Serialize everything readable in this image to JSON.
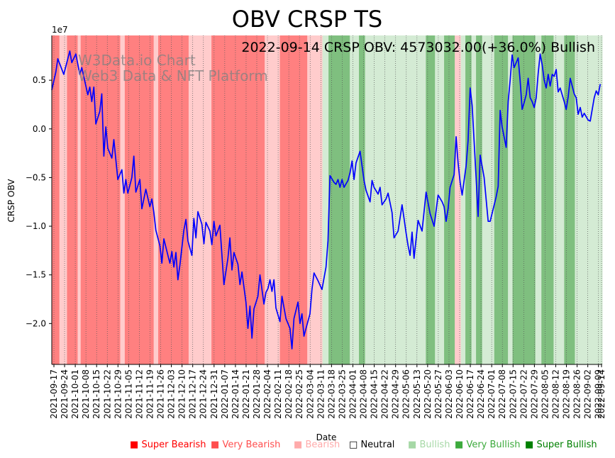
{
  "chart_data": {
    "type": "line",
    "title": "OBV CRSP TS",
    "annotation": "2022-09-14 CRSP OBV: 4573032.00(+36.0%) Bullish",
    "watermark": [
      "W3Data.io Chart",
      "Web3 Data & NFT Platform"
    ],
    "xlabel": "Date",
    "ylabel": "CRSP OBV",
    "y_exponent_label": "1e7",
    "ylim": [
      -2.42,
      0.96
    ],
    "yticks": [
      0.5,
      0.0,
      -0.5,
      -1.0,
      -1.5,
      -2.0
    ],
    "ytick_labels": [
      "0.5",
      "0.0",
      "−0.5",
      "−1.0",
      "−1.5",
      "−2.0"
    ],
    "x_start": "2021-09-17",
    "x_end": "2022-09-14",
    "xtick_labels": [
      "2021-09-17",
      "2021-09-24",
      "2021-10-01",
      "2021-10-08",
      "2021-10-15",
      "2021-10-22",
      "2021-10-29",
      "2021-11-05",
      "2021-11-12",
      "2021-11-19",
      "2021-11-26",
      "2021-12-03",
      "2021-12-10",
      "2021-12-17",
      "2021-12-24",
      "2021-12-31",
      "2022-01-07",
      "2022-01-14",
      "2022-01-21",
      "2022-01-28",
      "2022-02-04",
      "2022-02-11",
      "2022-02-18",
      "2022-02-25",
      "2022-03-04",
      "2022-03-11",
      "2022-03-18",
      "2022-03-25",
      "2022-04-01",
      "2022-04-08",
      "2022-04-15",
      "2022-04-22",
      "2022-04-29",
      "2022-05-06",
      "2022-05-13",
      "2022-05-20",
      "2022-05-27",
      "2022-06-03",
      "2022-06-10",
      "2022-06-17",
      "2022-06-24",
      "2022-07-01",
      "2022-07-08",
      "2022-07-15",
      "2022-07-22",
      "2022-07-29",
      "2022-08-05",
      "2022-08-12",
      "2022-08-19",
      "2022-08-26",
      "2022-09-02",
      "2022-09-09",
      "2022-09-14"
    ],
    "bands": [
      {
        "from": 0,
        "to": 5,
        "sentiment": "very_bearish"
      },
      {
        "from": 5,
        "to": 10,
        "sentiment": "bearish"
      },
      {
        "from": 10,
        "to": 17,
        "sentiment": "very_bearish"
      },
      {
        "from": 17,
        "to": 19,
        "sentiment": "bearish"
      },
      {
        "from": 19,
        "to": 45,
        "sentiment": "very_bearish"
      },
      {
        "from": 45,
        "to": 48,
        "sentiment": "bearish"
      },
      {
        "from": 48,
        "to": 67,
        "sentiment": "very_bearish"
      },
      {
        "from": 67,
        "to": 70,
        "sentiment": "bearish"
      },
      {
        "from": 70,
        "to": 90,
        "sentiment": "very_bearish"
      },
      {
        "from": 90,
        "to": 105,
        "sentiment": "bearish"
      },
      {
        "from": 105,
        "to": 140,
        "sentiment": "very_bearish"
      },
      {
        "from": 140,
        "to": 150,
        "sentiment": "bearish"
      },
      {
        "from": 150,
        "to": 168,
        "sentiment": "very_bearish"
      },
      {
        "from": 168,
        "to": 178,
        "sentiment": "bearish"
      },
      {
        "from": 178,
        "to": 182,
        "sentiment": "bullish"
      },
      {
        "from": 182,
        "to": 196,
        "sentiment": "very_bullish"
      },
      {
        "from": 196,
        "to": 202,
        "sentiment": "bullish"
      },
      {
        "from": 202,
        "to": 206,
        "sentiment": "very_bullish"
      },
      {
        "from": 206,
        "to": 246,
        "sentiment": "bullish"
      },
      {
        "from": 246,
        "to": 252,
        "sentiment": "very_bullish"
      },
      {
        "from": 252,
        "to": 258,
        "sentiment": "bullish"
      },
      {
        "from": 258,
        "to": 265,
        "sentiment": "very_bullish"
      },
      {
        "from": 265,
        "to": 269,
        "sentiment": "bearish"
      },
      {
        "from": 269,
        "to": 272,
        "sentiment": "bullish"
      },
      {
        "from": 272,
        "to": 276,
        "sentiment": "very_bullish"
      },
      {
        "from": 276,
        "to": 279,
        "sentiment": "bullish"
      },
      {
        "from": 279,
        "to": 283,
        "sentiment": "very_bullish"
      },
      {
        "from": 283,
        "to": 291,
        "sentiment": "bullish"
      },
      {
        "from": 291,
        "to": 300,
        "sentiment": "very_bullish"
      },
      {
        "from": 300,
        "to": 303,
        "sentiment": "bullish"
      },
      {
        "from": 303,
        "to": 318,
        "sentiment": "very_bullish"
      },
      {
        "from": 318,
        "to": 322,
        "sentiment": "bullish"
      },
      {
        "from": 322,
        "to": 330,
        "sentiment": "very_bullish"
      },
      {
        "from": 330,
        "to": 337,
        "sentiment": "bullish"
      },
      {
        "from": 337,
        "to": 344,
        "sentiment": "very_bullish"
      },
      {
        "from": 344,
        "to": 362,
        "sentiment": "bullish"
      }
    ],
    "series": [
      {
        "name": "CRSP OBV",
        "color": "#0000ff",
        "points": [
          [
            0,
            0.4
          ],
          [
            2,
            0.58
          ],
          [
            3,
            0.72
          ],
          [
            6,
            0.56
          ],
          [
            9,
            0.8
          ],
          [
            10,
            0.68
          ],
          [
            12,
            0.77
          ],
          [
            14,
            0.56
          ],
          [
            15,
            0.63
          ],
          [
            18,
            0.35
          ],
          [
            19,
            0.43
          ],
          [
            20,
            0.28
          ],
          [
            21,
            0.43
          ],
          [
            22,
            0.05
          ],
          [
            24,
            0.18
          ],
          [
            25,
            0.36
          ],
          [
            26,
            -0.28
          ],
          [
            27,
            0.02
          ],
          [
            28,
            -0.2
          ],
          [
            30,
            -0.3
          ],
          [
            31,
            -0.11
          ],
          [
            33,
            -0.52
          ],
          [
            35,
            -0.42
          ],
          [
            36,
            -0.66
          ],
          [
            37,
            -0.52
          ],
          [
            38,
            -0.66
          ],
          [
            40,
            -0.5
          ],
          [
            41,
            -0.28
          ],
          [
            42,
            -0.65
          ],
          [
            44,
            -0.52
          ],
          [
            45,
            -0.82
          ],
          [
            47,
            -0.62
          ],
          [
            49,
            -0.8
          ],
          [
            50,
            -0.72
          ],
          [
            51,
            -0.86
          ],
          [
            52,
            -1.04
          ],
          [
            54,
            -1.2
          ],
          [
            55,
            -1.38
          ],
          [
            56,
            -1.13
          ],
          [
            58,
            -1.3
          ],
          [
            59,
            -1.38
          ],
          [
            60,
            -1.26
          ],
          [
            61,
            -1.42
          ],
          [
            62,
            -1.27
          ],
          [
            63,
            -1.55
          ],
          [
            64,
            -1.4
          ],
          [
            66,
            -1.04
          ],
          [
            67,
            -0.93
          ],
          [
            68,
            -1.15
          ],
          [
            70,
            -1.3
          ],
          [
            71,
            -0.92
          ],
          [
            72,
            -1.12
          ],
          [
            73,
            -0.85
          ],
          [
            75,
            -0.98
          ],
          [
            76,
            -1.18
          ],
          [
            77,
            -0.96
          ],
          [
            79,
            -1.05
          ],
          [
            80,
            -1.19
          ],
          [
            81,
            -0.95
          ],
          [
            82,
            -1.1
          ],
          [
            84,
            -0.99
          ],
          [
            86,
            -1.6
          ],
          [
            88,
            -1.33
          ],
          [
            89,
            -1.12
          ],
          [
            90,
            -1.45
          ],
          [
            91,
            -1.27
          ],
          [
            93,
            -1.39
          ],
          [
            94,
            -1.6
          ],
          [
            95,
            -1.47
          ],
          [
            97,
            -1.78
          ],
          [
            98,
            -2.05
          ],
          [
            99,
            -1.82
          ],
          [
            100,
            -2.15
          ],
          [
            101,
            -1.85
          ],
          [
            103,
            -1.72
          ],
          [
            104,
            -1.5
          ],
          [
            106,
            -1.8
          ],
          [
            107,
            -1.68
          ],
          [
            108,
            -1.64
          ],
          [
            109,
            -1.55
          ],
          [
            110,
            -1.67
          ],
          [
            111,
            -1.55
          ],
          [
            112,
            -1.84
          ],
          [
            114,
            -1.98
          ],
          [
            115,
            -1.72
          ],
          [
            117,
            -1.95
          ],
          [
            119,
            -2.05
          ],
          [
            120,
            -2.26
          ],
          [
            121,
            -1.95
          ],
          [
            123,
            -1.78
          ],
          [
            124,
            -2.0
          ],
          [
            125,
            -1.9
          ],
          [
            126,
            -2.13
          ],
          [
            127,
            -2.05
          ],
          [
            129,
            -1.9
          ],
          [
            130,
            -1.65
          ],
          [
            131,
            -1.48
          ],
          [
            133,
            -1.56
          ],
          [
            135,
            -1.65
          ],
          [
            137,
            -1.42
          ],
          [
            138,
            -1.15
          ],
          [
            139,
            -0.48
          ],
          [
            141,
            -0.55
          ],
          [
            142,
            -0.57
          ],
          [
            143,
            -0.52
          ],
          [
            144,
            -0.6
          ],
          [
            145,
            -0.52
          ],
          [
            146,
            -0.6
          ],
          [
            148,
            -0.53
          ],
          [
            149,
            -0.45
          ],
          [
            150,
            -0.33
          ],
          [
            151,
            -0.52
          ],
          [
            152,
            -0.35
          ],
          [
            154,
            -0.23
          ],
          [
            156,
            -0.53
          ],
          [
            157,
            -0.63
          ],
          [
            159,
            -0.75
          ],
          [
            160,
            -0.53
          ],
          [
            161,
            -0.6
          ],
          [
            163,
            -0.67
          ],
          [
            164,
            -0.6
          ],
          [
            165,
            -0.78
          ],
          [
            167,
            -0.72
          ],
          [
            168,
            -0.66
          ],
          [
            170,
            -0.86
          ],
          [
            171,
            -1.12
          ],
          [
            173,
            -1.05
          ],
          [
            175,
            -0.78
          ],
          [
            176,
            -0.92
          ],
          [
            177,
            -1.07
          ],
          [
            178,
            -1.2
          ],
          [
            179,
            -1.3
          ],
          [
            180,
            -1.06
          ],
          [
            181,
            -1.33
          ],
          [
            183,
            -0.94
          ],
          [
            185,
            -1.05
          ],
          [
            187,
            -0.65
          ],
          [
            189,
            -0.87
          ],
          [
            191,
            -1.0
          ],
          [
            193,
            -0.68
          ],
          [
            195,
            -0.75
          ],
          [
            196,
            -0.8
          ],
          [
            197,
            -0.95
          ],
          [
            198,
            -0.82
          ],
          [
            199,
            -0.6
          ],
          [
            201,
            -0.47
          ],
          [
            202,
            -0.08
          ],
          [
            203,
            -0.35
          ],
          [
            204,
            -0.55
          ],
          [
            205,
            -0.68
          ],
          [
            207,
            -0.38
          ],
          [
            208,
            -0.12
          ],
          [
            209,
            0.42
          ],
          [
            210,
            0.24
          ],
          [
            212,
            -0.5
          ],
          [
            213,
            -0.9
          ],
          [
            214,
            -0.27
          ],
          [
            216,
            -0.5
          ],
          [
            218,
            -0.95
          ],
          [
            219,
            -0.95
          ],
          [
            222,
            -0.7
          ],
          [
            223,
            -0.59
          ],
          [
            224,
            0.19
          ],
          [
            225,
            0.02
          ],
          [
            227,
            -0.19
          ],
          [
            228,
            0.28
          ],
          [
            229,
            0.5
          ],
          [
            230,
            0.76
          ],
          [
            231,
            0.63
          ],
          [
            232,
            0.68
          ],
          [
            233,
            0.73
          ],
          [
            234,
            0.49
          ],
          [
            235,
            0.2
          ],
          [
            236,
            0.27
          ],
          [
            237,
            0.35
          ],
          [
            238,
            0.52
          ],
          [
            239,
            0.32
          ],
          [
            240,
            0.28
          ],
          [
            241,
            0.22
          ],
          [
            242,
            0.32
          ],
          [
            243,
            0.57
          ],
          [
            244,
            0.77
          ],
          [
            245,
            0.66
          ],
          [
            246,
            0.5
          ],
          [
            247,
            0.42
          ],
          [
            248,
            0.56
          ],
          [
            249,
            0.44
          ],
          [
            250,
            0.56
          ],
          [
            251,
            0.54
          ],
          [
            252,
            0.61
          ],
          [
            253,
            0.38
          ],
          [
            254,
            0.42
          ],
          [
            256,
            0.28
          ],
          [
            257,
            0.2
          ],
          [
            258,
            0.33
          ],
          [
            259,
            0.52
          ],
          [
            261,
            0.36
          ],
          [
            262,
            0.32
          ],
          [
            263,
            0.15
          ],
          [
            264,
            0.22
          ],
          [
            265,
            0.12
          ],
          [
            266,
            0.16
          ],
          [
            268,
            0.09
          ],
          [
            269,
            0.08
          ],
          [
            270,
            0.2
          ],
          [
            271,
            0.32
          ],
          [
            272,
            0.39
          ],
          [
            273,
            0.35
          ],
          [
            274,
            0.46
          ]
        ]
      }
    ],
    "x_max": 275,
    "legend": [
      {
        "marker": "■",
        "label": "Super Bearish",
        "color": "#ff0000"
      },
      {
        "marker": "■",
        "label": "Very Bearish",
        "color": "#ff4d4d"
      },
      {
        "marker": "■",
        "label": "Bearish",
        "color": "#ffaaaa"
      },
      {
        "marker": "□",
        "label": "Neutral",
        "color": "#000000"
      },
      {
        "marker": "■",
        "label": "Bullish",
        "color": "#a6d8a6"
      },
      {
        "marker": "■",
        "label": "Very Bullish",
        "color": "#3caa3c"
      },
      {
        "marker": "■",
        "label": "Super Bullish",
        "color": "#008000"
      }
    ],
    "band_colors": {
      "very_bearish": "#ff8080",
      "bearish": "#ffcccc",
      "bullish": "#d4ebd4",
      "very_bullish": "#7fbf7f"
    },
    "line_color": "#0000ff"
  }
}
